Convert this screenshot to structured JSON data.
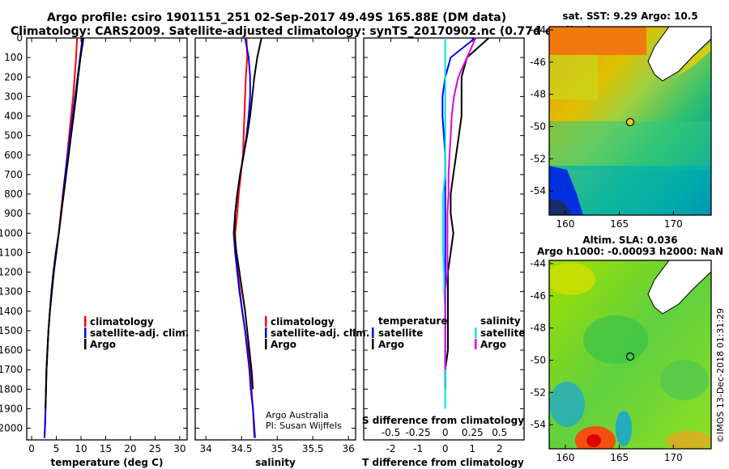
{
  "title_line1": "Argo profile: csiro 1901151_251 02-Sep-2017 49.49S 165.88E (DM data)",
  "title_line2": "Climatology: CARS2009. Satellite-adjusted climatology: synTS_20170902.nc (0.77d earlier)",
  "map_sst_title": "sat. SST: 9.29 Argo: 10.5",
  "map_sla_title1": "Altim. SLA: 0.036",
  "map_sla_title2": "Argo h1000: -0.00093 h2000: NaN",
  "credit": "Argo Australia",
  "pi": "PI: Susan Wijffels",
  "imos_stamp": "©IMOS 13-Dec-2018 01:31:29",
  "colors": {
    "climatology": "#ff0000",
    "satellite": "#0000ff",
    "argo": "#000000",
    "sat_salinity": "#00e5e5",
    "argo_salinity": "#e000e0"
  },
  "depth_ticks": [
    "0",
    "100",
    "200",
    "300",
    "400",
    "500",
    "600",
    "700",
    "800",
    "900",
    "1000",
    "1100",
    "1200",
    "1300",
    "1400",
    "1500",
    "1600",
    "1700",
    "1800",
    "1900",
    "2000"
  ],
  "map_lat_ticks": [
    "-44",
    "-46",
    "-48",
    "-50",
    "-52",
    "-54"
  ],
  "map_lon_ticks": [
    "160",
    "165",
    "170"
  ],
  "chart_data": [
    {
      "type": "line",
      "xlabel": "temperature (deg C)",
      "ylabel": "",
      "xlim": [
        -1,
        31.5
      ],
      "ylim": [
        2060,
        0
      ],
      "x_ticks": [
        "0",
        "5",
        "10",
        "15",
        "20",
        "25",
        "30"
      ],
      "legend": [
        "climatology",
        "satellite-adj. clim.",
        "Argo"
      ],
      "series": [
        {
          "name": "climatology",
          "color": "#ff0000",
          "x": [
            9.2,
            9.0,
            8.7,
            8.4,
            8.0,
            7.6,
            7.2,
            6.8,
            6.3,
            5.9,
            5.5,
            4.9,
            4.4,
            4.0,
            3.7,
            3.4,
            3.2,
            3.0,
            2.9,
            2.8,
            2.7,
            2.6
          ],
          "y": [
            0,
            100,
            200,
            300,
            400,
            500,
            600,
            700,
            800,
            900,
            1000,
            1100,
            1200,
            1300,
            1400,
            1500,
            1600,
            1700,
            1800,
            1900,
            2000,
            2050
          ]
        },
        {
          "name": "satellite-adj. clim.",
          "color": "#0000ff",
          "x": [
            10.3,
            9.8,
            9.3,
            8.8,
            8.3,
            7.8,
            7.3,
            6.8,
            6.4,
            6.0,
            5.5,
            4.9,
            4.4,
            4.0,
            3.7,
            3.4,
            3.2,
            3.0,
            2.9,
            2.8,
            2.7,
            2.6
          ],
          "y": [
            0,
            100,
            200,
            300,
            400,
            500,
            600,
            700,
            800,
            900,
            1000,
            1100,
            1200,
            1300,
            1400,
            1500,
            1600,
            1700,
            1800,
            1900,
            2000,
            2050
          ]
        },
        {
          "name": "Argo",
          "color": "#000000",
          "x": [
            10.5,
            9.9,
            9.4,
            9.0,
            8.5,
            8.0,
            7.5,
            7.0,
            6.5,
            6.0,
            5.5,
            5.0,
            4.5,
            4.1,
            3.7,
            3.4,
            3.2,
            3.0,
            2.9,
            2.8
          ],
          "y": [
            0,
            100,
            200,
            300,
            400,
            500,
            600,
            700,
            800,
            900,
            1000,
            1100,
            1200,
            1300,
            1400,
            1500,
            1600,
            1700,
            1800,
            1900
          ]
        }
      ]
    },
    {
      "type": "line",
      "xlabel": "salinity",
      "ylabel": "",
      "xlim": [
        33.85,
        36.1
      ],
      "ylim": [
        2060,
        0
      ],
      "x_ticks": [
        "34",
        "34.5",
        "35",
        "35.5",
        "36"
      ],
      "legend": [
        "climatology",
        "satellite-adj. clim.",
        "Argo"
      ],
      "series": [
        {
          "name": "climatology",
          "color": "#ff0000",
          "x": [
            34.57,
            34.58,
            34.56,
            34.55,
            34.54,
            34.53,
            34.52,
            34.49,
            34.46,
            34.44,
            34.41,
            34.42,
            34.45,
            34.48,
            34.51,
            34.55,
            34.59,
            34.62,
            34.64,
            34.66,
            34.68
          ],
          "y": [
            0,
            100,
            200,
            300,
            400,
            500,
            600,
            700,
            800,
            900,
            1000,
            1100,
            1200,
            1300,
            1400,
            1500,
            1600,
            1700,
            1800,
            1900,
            2050
          ]
        },
        {
          "name": "satellite-adj. clim.",
          "color": "#0000ff",
          "x": [
            34.55,
            34.6,
            34.62,
            34.62,
            34.6,
            34.57,
            34.53,
            34.48,
            34.44,
            34.41,
            34.39,
            34.41,
            34.44,
            34.47,
            34.51,
            34.55,
            34.58,
            34.61,
            34.63,
            34.66,
            34.69
          ],
          "y": [
            0,
            100,
            200,
            300,
            400,
            500,
            600,
            700,
            800,
            900,
            1000,
            1100,
            1200,
            1300,
            1400,
            1500,
            1600,
            1700,
            1800,
            1900,
            2050
          ]
        },
        {
          "name": "Argo",
          "color": "#000000",
          "x": [
            34.78,
            34.72,
            34.68,
            34.65,
            34.62,
            34.58,
            34.53,
            34.48,
            34.44,
            34.41,
            34.4,
            34.43,
            34.47,
            34.51,
            34.55,
            34.58,
            34.61,
            34.64,
            34.66
          ],
          "y": [
            0,
            100,
            200,
            300,
            400,
            500,
            600,
            700,
            800,
            900,
            1000,
            1100,
            1200,
            1300,
            1400,
            1500,
            1600,
            1700,
            1800
          ]
        }
      ]
    },
    {
      "type": "line",
      "xlabel": "T difference from climatology",
      "secondary_xlabel": "S difference from climatology",
      "ylabel": "",
      "xlim": [
        -3,
        2.9
      ],
      "ylim": [
        2060,
        0
      ],
      "x_ticks": [
        "-2",
        "-1",
        "0",
        "1",
        "2"
      ],
      "secondary_x_ticks": [
        "-0.5",
        "-0.25",
        "0",
        "0.25",
        "0.5"
      ],
      "legend_left_title": "temperature",
      "legend_right_title": "salinity",
      "legend": [
        "satellite",
        "Argo",
        "satellite",
        "Argo"
      ],
      "series": [
        {
          "name": "satellite",
          "color": "#0000ff",
          "x": [
            1.1,
            0.2,
            0.0,
            -0.1,
            -0.1,
            -0.05,
            0.0,
            0.0,
            0.0,
            0.0,
            0.0,
            0.0,
            0.0,
            0.0,
            0.0,
            0.0,
            0.0,
            0.0,
            0.0
          ],
          "y": [
            0,
            100,
            200,
            300,
            400,
            500,
            600,
            700,
            800,
            900,
            1000,
            1100,
            1200,
            1300,
            1400,
            1500,
            1600,
            1700,
            1800
          ]
        },
        {
          "name": "Argo",
          "color": "#000000",
          "x": [
            1.6,
            0.8,
            0.6,
            0.6,
            0.6,
            0.5,
            0.4,
            0.3,
            0.2,
            0.2,
            0.3,
            0.2,
            0.1,
            0.1,
            0.1,
            0.1,
            0.1,
            0.0,
            0.0
          ],
          "y": [
            0,
            100,
            200,
            300,
            400,
            500,
            600,
            700,
            800,
            900,
            1000,
            1100,
            1200,
            1300,
            1400,
            1500,
            1600,
            1700,
            1800
          ]
        },
        {
          "name": "satellite",
          "color": "#00e5e5",
          "x": [
            0.0,
            0.0,
            0.0,
            0.0,
            0.0,
            0.0,
            0.0,
            0.0,
            -0.02,
            -0.02,
            -0.02,
            -0.02,
            -0.01,
            -0.01,
            0.0,
            0.0,
            0.0,
            0.0,
            0.0,
            0.0
          ],
          "y": [
            0,
            100,
            200,
            300,
            400,
            500,
            600,
            700,
            800,
            900,
            1000,
            1100,
            1200,
            1300,
            1400,
            1500,
            1600,
            1700,
            1800,
            1900
          ]
        },
        {
          "name": "Argo",
          "color": "#e000e0",
          "x": [
            0.28,
            0.2,
            0.12,
            0.08,
            0.06,
            0.05,
            0.04,
            0.03,
            0.03,
            0.02,
            0.02,
            0.02,
            0.02,
            0.0,
            0.0,
            0.0,
            0.0,
            0.0
          ],
          "y": [
            0,
            100,
            200,
            300,
            400,
            500,
            600,
            700,
            800,
            900,
            1000,
            1100,
            1200,
            1300,
            1400,
            1500,
            1600,
            1700
          ]
        }
      ]
    },
    {
      "type": "heatmap",
      "title": "sat. SST: 9.29 Argo: 10.5",
      "xlim": [
        158.5,
        173.5
      ],
      "ylim": [
        -55.5,
        -43.8
      ],
      "x_ticks": [
        "160",
        "165",
        "170"
      ],
      "y_ticks": [
        "-44",
        "-46",
        "-48",
        "-50",
        "-52",
        "-54"
      ],
      "marker": {
        "lon": 165.88,
        "lat": -49.49
      }
    },
    {
      "type": "heatmap",
      "title": "Altim. SLA: 0.036",
      "subtitle": "Argo h1000: -0.00093 h2000: NaN",
      "xlim": [
        158.5,
        173.5
      ],
      "ylim": [
        -55.5,
        -43.8
      ],
      "x_ticks": [
        "160",
        "165",
        "170"
      ],
      "y_ticks": [
        "-44",
        "-46",
        "-48",
        "-50",
        "-52",
        "-54"
      ],
      "marker": {
        "lon": 165.88,
        "lat": -49.49
      }
    }
  ]
}
